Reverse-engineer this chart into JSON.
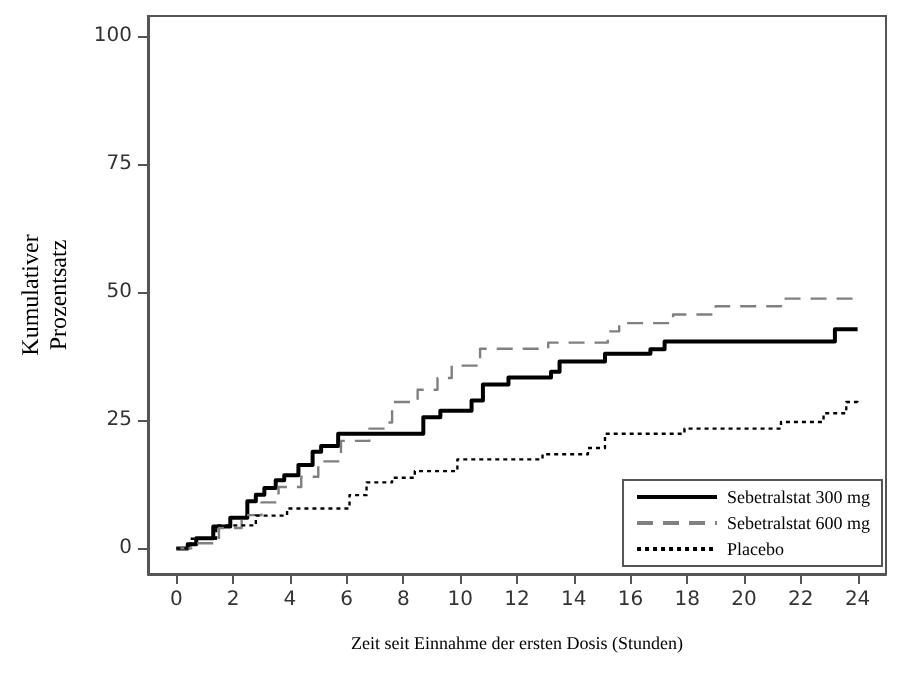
{
  "chart_data": {
    "type": "step",
    "xlabel": "Zeit seit Einnahme der ersten Dosis (Stunden)",
    "ylabel": "Kumulativer\nProzentsatz",
    "xlim": [
      -1,
      25
    ],
    "xticks": [
      0,
      2,
      4,
      6,
      8,
      10,
      12,
      14,
      16,
      18,
      20,
      22,
      24
    ],
    "ylim": [
      -5,
      104
    ],
    "yticks": [
      0,
      25,
      50,
      75,
      100
    ],
    "grid": false,
    "legend": "bottom right",
    "series": [
      {
        "name": "Sebetralstat 300 mg",
        "color": "#000000",
        "line_style": "solid",
        "x": [
          0,
          0.4,
          0.7,
          1.3,
          1.9,
          2.5,
          2.8,
          3.1,
          3.5,
          3.8,
          4.3,
          4.8,
          5.1,
          5.7,
          8.7,
          9.3,
          10.4,
          10.8,
          11.7,
          13.2,
          13.5,
          15.1,
          16.7,
          17.2,
          23.2,
          24
        ],
        "values": [
          0,
          0.8,
          2,
          4.3,
          6,
          9.2,
          10.5,
          11.8,
          13.3,
          14.3,
          16.3,
          18.9,
          20,
          22.4,
          25.6,
          26.9,
          28.9,
          32,
          33.4,
          34.5,
          36.5,
          38,
          38.9,
          40.4,
          42.8,
          43
        ]
      },
      {
        "name": "Sebetralstat 600 mg",
        "color": "#808080",
        "line_style": "dashed",
        "x": [
          0,
          0.6,
          1.5,
          2.3,
          3,
          3.6,
          4.4,
          5,
          5.8,
          6.8,
          7.4,
          7.6,
          8.5,
          9.2,
          9.7,
          10.7,
          13.1,
          15.2,
          15.6,
          17.5,
          19,
          21.3,
          24
        ],
        "values": [
          0,
          1,
          4,
          6.5,
          9,
          12,
          14,
          17,
          21,
          23.4,
          24.6,
          28.6,
          31,
          33.3,
          35.7,
          39,
          40.2,
          42.4,
          44,
          45.7,
          47.3,
          48.8,
          49.5
        ]
      },
      {
        "name": "Placebo",
        "color": "#000000",
        "line_style": "dotted",
        "x": [
          0,
          0.5,
          1.4,
          2.8,
          3.9,
          6.1,
          6.7,
          7.6,
          8.4,
          9.9,
          12.9,
          14.5,
          15.1,
          17.9,
          21.3,
          22.8,
          23.6,
          24
        ],
        "values": [
          0,
          1.9,
          4.5,
          6.4,
          7.8,
          10.4,
          12.9,
          13.8,
          15.1,
          17.4,
          18.4,
          19.6,
          22.4,
          23.4,
          24.7,
          26.4,
          28.6,
          28
        ]
      }
    ]
  }
}
